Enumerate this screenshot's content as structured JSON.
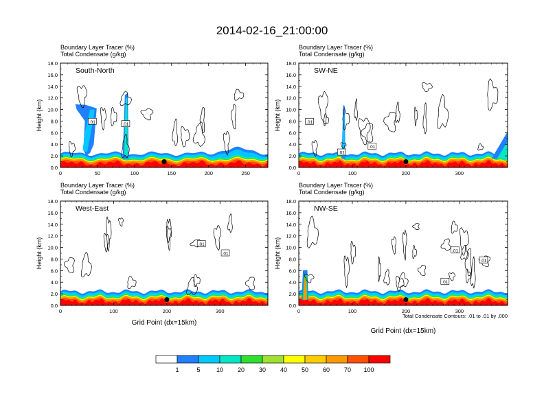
{
  "figure": {
    "title": "2014-02-16_21:00:00",
    "footnote": "Total Condensate Contours: .01 to .01 by .000"
  },
  "colorbar": {
    "labels": [
      "1",
      "5",
      "10",
      "20",
      "30",
      "40",
      "50",
      "60",
      "70",
      "100"
    ],
    "colors": [
      "#ffffff",
      "#2080ff",
      "#00c8ff",
      "#00e8c8",
      "#30e030",
      "#a0e030",
      "#ffff00",
      "#ffcc00",
      "#ff9900",
      "#ff5000",
      "#ff0000"
    ]
  },
  "panel_text": {
    "line1": "Boundary Layer Tracer   (%)",
    "line2": "Total Condensate   (g/kg)",
    "ylabel": "Height (km)",
    "xlabel": "Grid Point (dx=15km)"
  },
  "chart_data": [
    {
      "type": "heatmap",
      "name": "South-North",
      "xlim": [
        0,
        280
      ],
      "ylim": [
        0,
        18
      ],
      "xticks": [
        0,
        50,
        100,
        150,
        200,
        250
      ],
      "yticks": [
        "0.0",
        "2.0",
        "4.0",
        "6.0",
        "8.0",
        "10.0",
        "12.0",
        "14.0",
        "16.0",
        "18.0"
      ],
      "contour_labels": [
        {
          "x": 43,
          "y": 7.9,
          "text": "0.01"
        },
        {
          "x": 88,
          "y": 7.5,
          "text": "0.01"
        }
      ],
      "marker": {
        "x": 140,
        "y": 1.0
      },
      "show_xlabel": false
    },
    {
      "type": "heatmap",
      "name": "SW-NE",
      "xlim": [
        0,
        390
      ],
      "ylim": [
        0,
        18
      ],
      "xticks": [
        0,
        100,
        200,
        300
      ],
      "yticks": [
        "0.0",
        "2.0",
        "4.0",
        "6.0",
        "8.0",
        "10.0",
        "12.0",
        "14.0",
        "16.0",
        "18.0"
      ],
      "contour_labels": [
        {
          "x": 20,
          "y": 7.9,
          "text": "0.01"
        },
        {
          "x": 80,
          "y": 2.6,
          "text": "0.01"
        },
        {
          "x": 137,
          "y": 3.6,
          "text": "0.01"
        }
      ],
      "marker": {
        "x": 200,
        "y": 1.0
      },
      "show_xlabel": false
    },
    {
      "type": "heatmap",
      "name": "West-East",
      "xlim": [
        0,
        390
      ],
      "ylim": [
        0,
        18
      ],
      "xticks": [
        0,
        100,
        200,
        300
      ],
      "yticks": [
        "0.0",
        "2.0",
        "4.0",
        "6.0",
        "8.0",
        "10.0",
        "12.0",
        "14.0",
        "16.0",
        "18.0"
      ],
      "contour_labels": [
        {
          "x": 265,
          "y": 10.6,
          "text": "0.01"
        },
        {
          "x": 310,
          "y": 9.0,
          "text": "0.01"
        }
      ],
      "marker": {
        "x": 200,
        "y": 1.0
      },
      "show_xlabel": true
    },
    {
      "type": "heatmap",
      "name": "NW-SE",
      "xlim": [
        0,
        390
      ],
      "ylim": [
        0,
        18
      ],
      "xticks": [
        0,
        100,
        200,
        300
      ],
      "yticks": [
        "0.0",
        "2.0",
        "4.0",
        "6.0",
        "8.0",
        "10.0",
        "12.0",
        "14.0",
        "16.0",
        "18.0"
      ],
      "contour_labels": [
        {
          "x": 292,
          "y": 9.5,
          "text": "0.01"
        },
        {
          "x": 345,
          "y": 7.8,
          "text": "0.01"
        },
        {
          "x": 273,
          "y": 4.1,
          "text": "0.01"
        }
      ],
      "marker": {
        "x": 200,
        "y": 1.0
      },
      "show_xlabel": true
    }
  ]
}
